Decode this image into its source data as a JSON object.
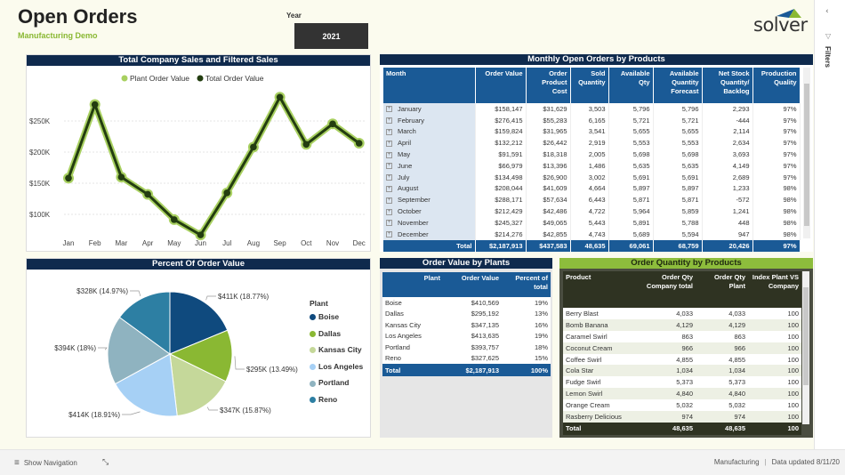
{
  "header": {
    "title": "Open Orders",
    "subtitle": "Manufacturing Demo",
    "year_label": "Year",
    "year_value": "2021",
    "logo_text": "solver"
  },
  "colors": {
    "navy": "#0f2a4d",
    "table_blue": "#1a5a96",
    "accent_green": "#8ab833",
    "dark_olive": "#2f3322",
    "plant_line": "#a8d060",
    "total_line": "#233d10"
  },
  "line_chart": {
    "title": "Total Company Sales and Filtered Sales",
    "chart_data": {
      "type": "line",
      "categories": [
        "Jan",
        "Feb",
        "Mar",
        "Apr",
        "May",
        "Jun",
        "Jul",
        "Aug",
        "Sep",
        "Oct",
        "Nov",
        "Dec"
      ],
      "yticks": [
        "$100K",
        "$150K",
        "$200K",
        "$250K"
      ],
      "ytick_values": [
        100000,
        150000,
        200000,
        250000
      ],
      "grid": true,
      "legend": "top-center",
      "series": [
        {
          "name": "Plant Order Value",
          "values": [
            158147,
            276415,
            159824,
            132212,
            91591,
            66979,
            134498,
            208044,
            288171,
            212429,
            245327,
            214276
          ]
        },
        {
          "name": "Total Order Value",
          "values": [
            158147,
            276415,
            159824,
            132212,
            91591,
            66979,
            134498,
            208044,
            288171,
            212429,
            245327,
            214276
          ]
        }
      ]
    }
  },
  "monthly": {
    "title": "Monthly Open Orders by Products",
    "columns": [
      "Month",
      "Order Value",
      "Order Product Cost",
      "Sold Quantity",
      "Available Qty",
      "Available Quantity Forecast",
      "Net Stock Quantity/ Backlog",
      "Production Quality"
    ],
    "rows": [
      [
        "January",
        "$158,147",
        "$31,629",
        "3,503",
        "5,796",
        "5,796",
        "2,293",
        "97%"
      ],
      [
        "February",
        "$276,415",
        "$55,283",
        "6,165",
        "5,721",
        "5,721",
        "-444",
        "97%"
      ],
      [
        "March",
        "$159,824",
        "$31,965",
        "3,541",
        "5,655",
        "5,655",
        "2,114",
        "97%"
      ],
      [
        "April",
        "$132,212",
        "$26,442",
        "2,919",
        "5,553",
        "5,553",
        "2,634",
        "97%"
      ],
      [
        "May",
        "$91,591",
        "$18,318",
        "2,005",
        "5,698",
        "5,698",
        "3,693",
        "97%"
      ],
      [
        "June",
        "$66,979",
        "$13,396",
        "1,486",
        "5,635",
        "5,635",
        "4,149",
        "97%"
      ],
      [
        "July",
        "$134,498",
        "$26,900",
        "3,002",
        "5,691",
        "5,691",
        "2,689",
        "97%"
      ],
      [
        "August",
        "$208,044",
        "$41,609",
        "4,664",
        "5,897",
        "5,897",
        "1,233",
        "98%"
      ],
      [
        "September",
        "$288,171",
        "$57,634",
        "6,443",
        "5,871",
        "5,871",
        "-572",
        "98%"
      ],
      [
        "October",
        "$212,429",
        "$42,486",
        "4,722",
        "5,964",
        "5,859",
        "1,241",
        "98%"
      ],
      [
        "November",
        "$245,327",
        "$49,065",
        "5,443",
        "5,891",
        "5,788",
        "448",
        "98%"
      ],
      [
        "December",
        "$214,276",
        "$42,855",
        "4,743",
        "5,689",
        "5,594",
        "947",
        "98%"
      ]
    ],
    "total": [
      "Total",
      "$2,187,913",
      "$437,583",
      "48,635",
      "69,061",
      "68,759",
      "20,426",
      "97%"
    ]
  },
  "pie": {
    "title": "Percent Of Order Value",
    "legend_title": "Plant",
    "chart_data": {
      "type": "pie",
      "legend": "right",
      "slices": [
        {
          "name": "Boise",
          "value": 410569,
          "percent": 18.77,
          "label": "$411K (18.77%)",
          "color": "#0f4a7e"
        },
        {
          "name": "Dallas",
          "value": 295192,
          "percent": 13.49,
          "label": "$295K (13.49%)",
          "color": "#8ab833"
        },
        {
          "name": "Kansas City",
          "value": 347135,
          "percent": 15.87,
          "label": "$347K (15.87%)",
          "color": "#c5d89a"
        },
        {
          "name": "Los Angeles",
          "value": 413635,
          "percent": 18.91,
          "label": "$414K (18.91%)",
          "color": "#a6d0f5"
        },
        {
          "name": "Portland",
          "value": 393757,
          "percent": 18,
          "label": "$394K (18%)",
          "color": "#8fb3c0"
        },
        {
          "name": "Reno",
          "value": 327625,
          "percent": 14.97,
          "label": "$328K (14.97%)",
          "color": "#2d7fa3"
        }
      ]
    }
  },
  "plants": {
    "title": "Order Value by Plants",
    "columns": [
      "Plant",
      "Order Value",
      "Percent of total"
    ],
    "rows": [
      [
        "Boise",
        "$410,569",
        "19%"
      ],
      [
        "Dallas",
        "$295,192",
        "13%"
      ],
      [
        "Kansas City",
        "$347,135",
        "16%"
      ],
      [
        "Los Angeles",
        "$413,635",
        "19%"
      ],
      [
        "Portland",
        "$393,757",
        "18%"
      ],
      [
        "Reno",
        "$327,625",
        "15%"
      ]
    ],
    "total": [
      "Total",
      "$2,187,913",
      "100%"
    ]
  },
  "products": {
    "title": "Order Quantity by Products",
    "columns": [
      "Product",
      "Order Qty Company total",
      "Order Qty Plant",
      "Index Plant VS Company"
    ],
    "rows": [
      [
        "Berry Blast",
        "4,033",
        "4,033",
        "100"
      ],
      [
        "Bomb Banana",
        "4,129",
        "4,129",
        "100"
      ],
      [
        "Caramel Swirl",
        "863",
        "863",
        "100"
      ],
      [
        "Coconut Cream",
        "966",
        "966",
        "100"
      ],
      [
        "Coffee Swirl",
        "4,855",
        "4,855",
        "100"
      ],
      [
        "Cola Star",
        "1,034",
        "1,034",
        "100"
      ],
      [
        "Fudge Swirl",
        "5,373",
        "5,373",
        "100"
      ],
      [
        "Lemon Swirl",
        "4,840",
        "4,840",
        "100"
      ],
      [
        "Orange Cream",
        "5,032",
        "5,032",
        "100"
      ],
      [
        "Rasberry Delicious",
        "974",
        "974",
        "100"
      ]
    ],
    "total": [
      "Total",
      "48,635",
      "48,635",
      "100"
    ]
  },
  "footer": {
    "show_navigation": "Show Navigation",
    "report_name": "Manufacturing",
    "data_updated": "Data updated 8/11/20"
  },
  "filters_pane": {
    "label": "Filters"
  }
}
